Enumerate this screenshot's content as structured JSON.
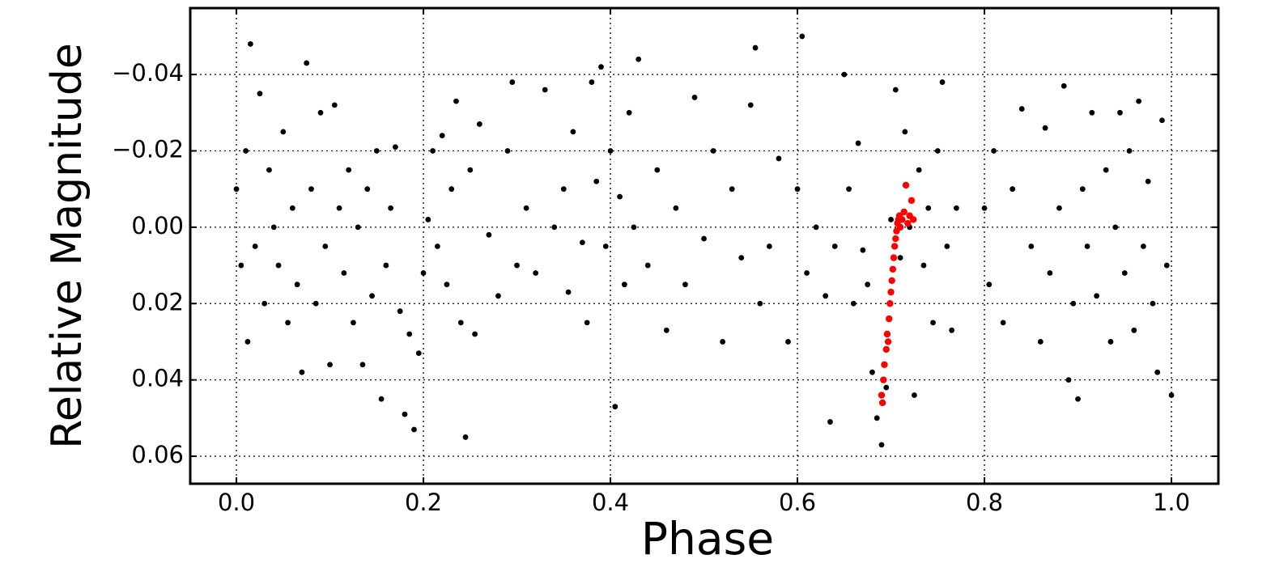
{
  "chart_data": {
    "type": "scatter",
    "x_label": "Phase",
    "y_label": "Relative Magnitude",
    "xlim": [
      -0.0494,
      1.0502
    ],
    "ylim": [
      -0.0574,
      0.0672
    ],
    "y_inverted": true,
    "grid": true,
    "xticks": [
      {
        "value": 0.0,
        "label": "0.0"
      },
      {
        "value": 0.2,
        "label": "0.2"
      },
      {
        "value": 0.4,
        "label": "0.4"
      },
      {
        "value": 0.6,
        "label": "0.6"
      },
      {
        "value": 0.8,
        "label": "0.8"
      },
      {
        "value": 1.0,
        "label": "1.0"
      }
    ],
    "yticks": [
      {
        "value": -0.04,
        "label": "−0.04"
      },
      {
        "value": -0.02,
        "label": "−0.02"
      },
      {
        "value": 0.0,
        "label": "0.00"
      },
      {
        "value": 0.02,
        "label": "0.02"
      },
      {
        "value": 0.04,
        "label": "0.04"
      },
      {
        "value": 0.06,
        "label": "0.06"
      }
    ],
    "series": [
      {
        "color": "#000000",
        "x": [
          0.0,
          0.005,
          0.01,
          0.012,
          0.015,
          0.02,
          0.025,
          0.03,
          0.035,
          0.04,
          0.045,
          0.05,
          0.055,
          0.06,
          0.065,
          0.07,
          0.075,
          0.08,
          0.085,
          0.09,
          0.095,
          0.1,
          0.105,
          0.11,
          0.115,
          0.12,
          0.125,
          0.13,
          0.135,
          0.14,
          0.145,
          0.15,
          0.155,
          0.16,
          0.165,
          0.17,
          0.175,
          0.18,
          0.185,
          0.19,
          0.195,
          0.2,
          0.205,
          0.21,
          0.215,
          0.22,
          0.225,
          0.23,
          0.235,
          0.24,
          0.245,
          0.25,
          0.255,
          0.26,
          0.27,
          0.28,
          0.29,
          0.295,
          0.3,
          0.31,
          0.32,
          0.33,
          0.34,
          0.35,
          0.355,
          0.36,
          0.37,
          0.375,
          0.38,
          0.385,
          0.39,
          0.395,
          0.4,
          0.405,
          0.41,
          0.415,
          0.42,
          0.425,
          0.43,
          0.44,
          0.45,
          0.46,
          0.47,
          0.48,
          0.49,
          0.5,
          0.51,
          0.52,
          0.53,
          0.54,
          0.55,
          0.555,
          0.56,
          0.57,
          0.58,
          0.59,
          0.6,
          0.605,
          0.61,
          0.62,
          0.63,
          0.635,
          0.64,
          0.65,
          0.655,
          0.66,
          0.665,
          0.67,
          0.675,
          0.68,
          0.685,
          0.69,
          0.695,
          0.7,
          0.705,
          0.71,
          0.715,
          0.72,
          0.725,
          0.73,
          0.735,
          0.74,
          0.745,
          0.75,
          0.755,
          0.76,
          0.765,
          0.77,
          0.8,
          0.805,
          0.81,
          0.82,
          0.83,
          0.84,
          0.85,
          0.86,
          0.865,
          0.87,
          0.88,
          0.885,
          0.89,
          0.895,
          0.9,
          0.905,
          0.91,
          0.915,
          0.92,
          0.93,
          0.935,
          0.94,
          0.945,
          0.95,
          0.955,
          0.96,
          0.965,
          0.97,
          0.975,
          0.98,
          0.985,
          0.99,
          0.995,
          1.0
        ],
        "values": [
          -0.01,
          0.01,
          -0.02,
          0.03,
          -0.048,
          0.005,
          -0.035,
          0.02,
          -0.015,
          0.0,
          0.01,
          -0.025,
          0.025,
          -0.005,
          0.015,
          0.038,
          -0.043,
          -0.01,
          0.02,
          -0.03,
          0.005,
          0.036,
          -0.032,
          -0.005,
          0.012,
          -0.015,
          0.025,
          0.0,
          0.036,
          -0.01,
          0.018,
          -0.02,
          0.045,
          0.01,
          -0.005,
          -0.021,
          0.022,
          0.049,
          0.028,
          0.053,
          0.033,
          0.012,
          -0.002,
          -0.02,
          0.005,
          -0.024,
          0.015,
          -0.01,
          -0.033,
          0.025,
          0.055,
          -0.015,
          0.028,
          -0.027,
          0.002,
          0.018,
          -0.02,
          -0.038,
          0.01,
          -0.005,
          0.012,
          -0.036,
          0.0,
          -0.01,
          0.017,
          -0.025,
          0.004,
          0.025,
          -0.038,
          -0.012,
          -0.042,
          0.005,
          -0.02,
          0.047,
          -0.008,
          0.015,
          -0.03,
          0.0,
          -0.044,
          0.01,
          -0.015,
          0.027,
          -0.005,
          0.015,
          -0.034,
          0.003,
          -0.02,
          0.03,
          -0.01,
          0.008,
          -0.032,
          -0.047,
          0.02,
          0.005,
          -0.018,
          0.03,
          -0.01,
          -0.05,
          0.012,
          0.0,
          0.018,
          0.051,
          0.005,
          -0.04,
          -0.01,
          0.02,
          -0.022,
          0.006,
          0.015,
          0.038,
          0.05,
          0.057,
          0.042,
          -0.002,
          -0.036,
          0.008,
          -0.025,
          0.0,
          0.044,
          -0.015,
          0.01,
          -0.005,
          0.025,
          -0.02,
          -0.038,
          0.005,
          0.027,
          -0.005,
          -0.005,
          0.015,
          -0.02,
          0.025,
          -0.01,
          -0.031,
          0.005,
          0.03,
          -0.026,
          0.012,
          -0.005,
          -0.037,
          0.04,
          0.02,
          0.045,
          -0.01,
          0.005,
          -0.03,
          0.018,
          -0.015,
          0.03,
          0.0,
          -0.03,
          0.012,
          -0.02,
          0.027,
          -0.033,
          0.005,
          -0.012,
          0.02,
          0.038,
          -0.028,
          0.01,
          0.044
        ]
      },
      {
        "color": "#ff0000",
        "x": [
          0.69,
          0.691,
          0.692,
          0.693,
          0.695,
          0.696,
          0.697,
          0.698,
          0.699,
          0.7,
          0.701,
          0.702,
          0.703,
          0.704,
          0.705,
          0.706,
          0.707,
          0.708,
          0.709,
          0.71,
          0.712,
          0.714,
          0.716,
          0.718,
          0.72,
          0.722,
          0.724
        ],
        "values": [
          0.044,
          0.046,
          0.04,
          0.036,
          0.032,
          0.028,
          0.03,
          0.024,
          0.02,
          0.017,
          0.014,
          0.011,
          0.008,
          0.005,
          0.003,
          0.001,
          -0.001,
          -0.002,
          -0.003,
          0.0,
          -0.002,
          -0.004,
          -0.011,
          -0.001,
          -0.003,
          -0.007,
          -0.002
        ]
      }
    ]
  }
}
